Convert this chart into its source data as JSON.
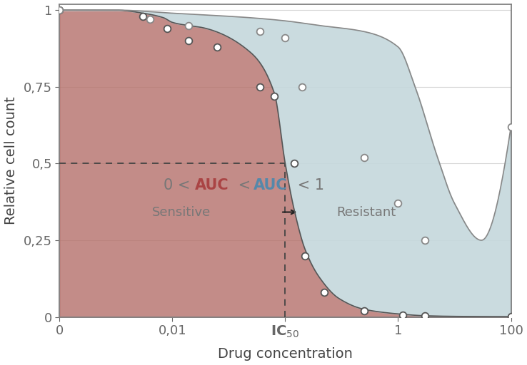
{
  "xlabel": "Drug concentration",
  "ylabel": "Relative cell count",
  "background_color": "#ffffff",
  "border_color": "#808080",
  "ytick_labels": [
    "0",
    "0,25",
    "0,5",
    "0,75",
    "1"
  ],
  "ytick_values": [
    0,
    0.25,
    0.5,
    0.75,
    1.0
  ],
  "sensitive_color": "#b5706a",
  "sensitive_alpha": 0.8,
  "resistant_color": "#c5d8dc",
  "resistant_alpha": 0.9,
  "dashed_color": "#444444",
  "grid_color": "#bbbbbb",
  "grid_alpha": 0.6,
  "figsize": [
    7.38,
    5.12
  ],
  "dpi": 100,
  "sens_dot_x": [
    0.0001,
    0.003,
    0.008,
    0.014,
    0.025,
    0.06,
    0.08,
    0.12,
    0.15,
    0.22,
    0.5,
    1.2,
    3.0,
    100
  ],
  "sens_dot_y": [
    1.0,
    0.98,
    0.94,
    0.9,
    0.88,
    0.75,
    0.72,
    0.5,
    0.2,
    0.08,
    0.02,
    0.005,
    0.003,
    0.002
  ],
  "res_dot_x": [
    0.0001,
    0.004,
    0.014,
    0.06,
    0.1,
    0.14,
    0.5,
    1.0,
    3.0,
    100
  ],
  "res_dot_y": [
    1.0,
    0.97,
    0.95,
    0.93,
    0.91,
    0.75,
    0.52,
    0.37,
    0.25,
    0.62
  ],
  "ann_color_gray": "#777777",
  "ann_color_red": "#aa4444",
  "ann_color_blue": "#5588aa",
  "ann_fontsize": 15,
  "ann_sub_fontsize": 13
}
